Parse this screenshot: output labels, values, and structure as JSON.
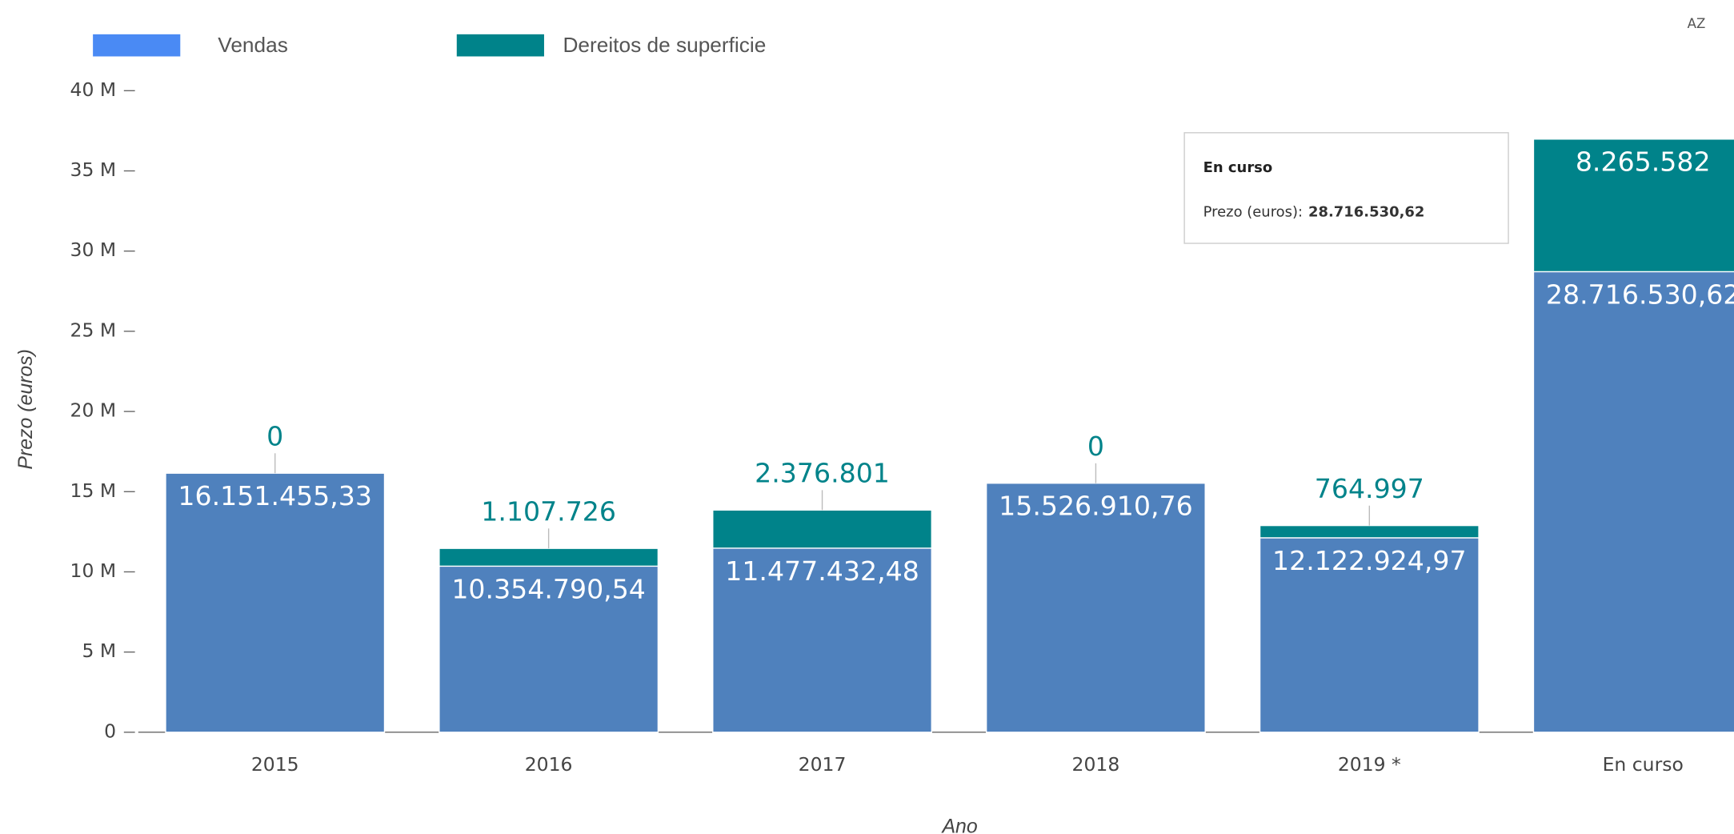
{
  "chart_data": {
    "type": "stacked_bar",
    "categories": [
      "2015",
      "2016",
      "2017",
      "2018",
      "2019 *",
      "En curso"
    ],
    "series": [
      {
        "name": "Vendas",
        "color": "#4f81bd",
        "legend_color": "#4a8af4",
        "values": [
          16151455.33,
          10354790.54,
          11477432.48,
          15526910.76,
          12122924.97,
          28716530.62
        ],
        "value_labels": [
          "16.151.455,33",
          "10.354.790,54",
          "11.477.432,48",
          "15.526.910,76",
          "12.122.924,97",
          "28.716.530,62"
        ]
      },
      {
        "name": "Dereitos de superficie",
        "color": "#00838a",
        "legend_color": "#00838a",
        "values": [
          0,
          1107726,
          2376801,
          0,
          764997,
          8265582
        ],
        "value_labels": [
          "0",
          "1.107.726",
          "2.376.801",
          "0",
          "764.997",
          "8.265.582"
        ]
      }
    ],
    "y_label": "Prezo (euros)",
    "x_label": "Ano",
    "ylim": [
      0,
      40000000
    ],
    "yticks": [
      {
        "value": 0,
        "label": "0"
      },
      {
        "value": 5000000,
        "label": "5 M"
      },
      {
        "value": 10000000,
        "label": "10 M"
      },
      {
        "value": 15000000,
        "label": "15 M"
      },
      {
        "value": 20000000,
        "label": "20 M"
      },
      {
        "value": 25000000,
        "label": "25 M"
      },
      {
        "value": 30000000,
        "label": "30 M"
      },
      {
        "value": 35000000,
        "label": "35 M"
      },
      {
        "value": 40000000,
        "label": "40 M"
      }
    ],
    "grid": false,
    "legend": "top-left",
    "tooltip": {
      "title": "En curso",
      "label": "Prezo (euros):",
      "value": "28.716.530,62"
    },
    "sort_button": "AZ"
  }
}
